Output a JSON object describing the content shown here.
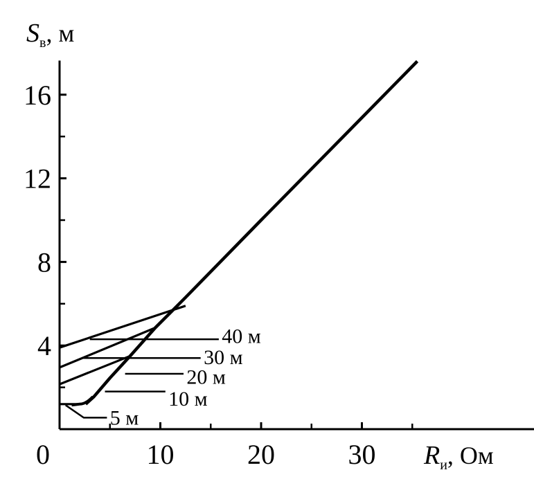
{
  "chart_data": {
    "type": "line",
    "xlabel": {
      "symbol": "R",
      "subscript": "и",
      "rest": ", Ом"
    },
    "ylabel": {
      "symbol": "S",
      "subscript": "в",
      "rest": ", м"
    },
    "xlim": [
      0,
      37
    ],
    "ylim": [
      0,
      17.5
    ],
    "x_ticks": [
      0,
      10,
      20,
      30
    ],
    "x_tick_labels": [
      "0",
      "10",
      "20",
      "30"
    ],
    "y_ticks": [
      4,
      8,
      12,
      16
    ],
    "y_tick_labels": [
      "4",
      "8",
      "12",
      "16"
    ],
    "y_minor_ticks": [
      2,
      6,
      10,
      14
    ],
    "x_minor_ticks": [
      5,
      15,
      25,
      35
    ],
    "grid": false,
    "main_curve": {
      "x": [
        2.6,
        3.4,
        5.0,
        7.0,
        9.5,
        12.5,
        20.0,
        30.0,
        35.5
      ],
      "y": [
        1.2,
        1.55,
        2.45,
        3.5,
        4.85,
        6.3,
        10.0,
        14.9,
        17.6
      ]
    },
    "series": [
      {
        "x": [
          0,
          0.4,
          2.0
        ],
        "y": [
          1.2,
          1.2,
          1.2
        ]
      },
      {
        "x": [
          0,
          7.0
        ],
        "y": [
          2.15,
          3.5
        ]
      },
      {
        "x": [
          0,
          9.5
        ],
        "y": [
          2.95,
          4.85
        ]
      },
      {
        "x": [
          0,
          12.5
        ],
        "y": [
          3.9,
          5.9
        ]
      }
    ],
    "annotations": [
      {
        "label": "5 м",
        "x": 5.0,
        "y": 0.55,
        "leader": [
          [
            0.6,
            1.15
          ],
          [
            2.4,
            0.55
          ],
          [
            4.7,
            0.55
          ]
        ]
      },
      {
        "label": "10 м",
        "x": 10.8,
        "y": 1.45,
        "leader": [
          [
            4.5,
            1.8
          ],
          [
            10.5,
            1.8
          ]
        ]
      },
      {
        "label": "20 м",
        "x": 12.6,
        "y": 2.5,
        "leader": [
          [
            6.5,
            2.65
          ],
          [
            12.3,
            2.65
          ]
        ]
      },
      {
        "label": "30 м",
        "x": 14.3,
        "y": 3.45,
        "leader": [
          [
            2.2,
            3.4
          ],
          [
            14.0,
            3.4
          ]
        ]
      },
      {
        "label": "40 м",
        "x": 16.1,
        "y": 4.45,
        "leader": [
          [
            3.0,
            4.3
          ],
          [
            15.8,
            4.3
          ]
        ]
      }
    ]
  }
}
